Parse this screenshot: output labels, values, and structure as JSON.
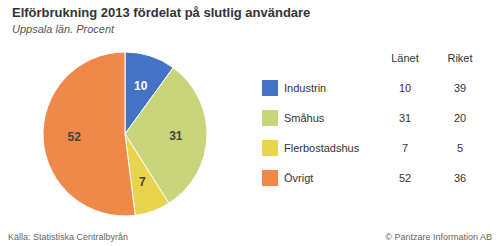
{
  "chart_data": {
    "type": "pie",
    "title": "Elförbrukning 2013 fördelat på slutlig användare",
    "subtitle": "Uppsala län. Procent",
    "categories": [
      "Industrin",
      "Småhus",
      "Flerbostadshus",
      "Övrigt"
    ],
    "series": [
      {
        "name": "Länet",
        "values": [
          10,
          31,
          7,
          52
        ]
      },
      {
        "name": "Riket",
        "values": [
          39,
          20,
          5,
          36
        ]
      }
    ],
    "colors": [
      "#4472c4",
      "#c8d57a",
      "#e8d44d",
      "#f0884a"
    ],
    "data_labels": true,
    "legend": "right",
    "annotations": [
      "Källa: Statistiska Centralbyrån",
      "© Pantzare Information AB"
    ]
  }
}
